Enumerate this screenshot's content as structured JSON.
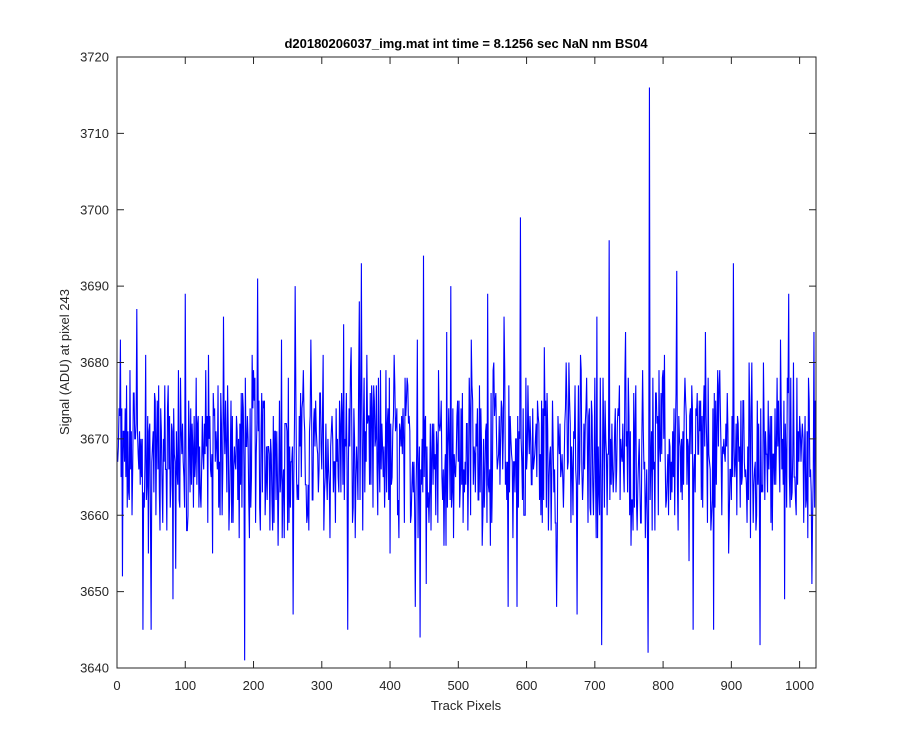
{
  "chart_data": {
    "type": "line",
    "title": "d20180206037_img.mat int time = 8.1256 sec  NaN nm BS04",
    "xlabel": "Track Pixels",
    "ylabel": "Signal (ADU) at pixel 243",
    "xlim": [
      0,
      1024
    ],
    "ylim": [
      3640,
      3720
    ],
    "xticks": [
      0,
      100,
      200,
      300,
      400,
      500,
      600,
      700,
      800,
      900,
      1000
    ],
    "yticks": [
      3640,
      3650,
      3660,
      3670,
      3680,
      3690,
      3700,
      3710,
      3720
    ],
    "grid": false,
    "series": [
      {
        "color": "#0000ff",
        "x_start": 1,
        "x_step": 1,
        "note_extremes": {
          "max": [
            780,
            3716
          ],
          "min": [
            187,
            3641
          ]
        },
        "sampled_points": [
          [
            1,
            3667
          ],
          [
            5,
            3683
          ],
          [
            8,
            3652
          ],
          [
            12,
            3674
          ],
          [
            18,
            3662
          ],
          [
            24,
            3676
          ],
          [
            29,
            3687
          ],
          [
            34,
            3664
          ],
          [
            38,
            3645
          ],
          [
            42,
            3681
          ],
          [
            46,
            3655
          ],
          [
            50,
            3645
          ],
          [
            56,
            3675
          ],
          [
            63,
            3658
          ],
          [
            70,
            3677
          ],
          [
            76,
            3666
          ],
          [
            82,
            3649
          ],
          [
            86,
            3653
          ],
          [
            90,
            3679
          ],
          [
            95,
            3668
          ],
          [
            100,
            3689
          ],
          [
            104,
            3660
          ],
          [
            110,
            3672
          ],
          [
            116,
            3678
          ],
          [
            122,
            3663
          ],
          [
            128,
            3672
          ],
          [
            134,
            3681
          ],
          [
            140,
            3655
          ],
          [
            146,
            3669
          ],
          [
            151,
            3660
          ],
          [
            156,
            3686
          ],
          [
            161,
            3663
          ],
          [
            167,
            3675
          ],
          [
            173,
            3667
          ],
          [
            179,
            3657
          ],
          [
            184,
            3676
          ],
          [
            187,
            3641
          ],
          [
            192,
            3670
          ],
          [
            198,
            3681
          ],
          [
            203,
            3659
          ],
          [
            206,
            3691
          ],
          [
            211,
            3671
          ],
          [
            217,
            3660
          ],
          [
            223,
            3668
          ],
          [
            229,
            3673
          ],
          [
            235,
            3665
          ],
          [
            241,
            3683
          ],
          [
            247,
            3672
          ],
          [
            252,
            3659
          ],
          [
            258,
            3647
          ],
          [
            261,
            3690
          ],
          [
            266,
            3662
          ],
          [
            272,
            3675
          ],
          [
            278,
            3659
          ],
          [
            284,
            3683
          ],
          [
            290,
            3669
          ],
          [
            296,
            3666
          ],
          [
            302,
            3681
          ],
          [
            308,
            3662
          ],
          [
            314,
            3671
          ],
          [
            320,
            3659
          ],
          [
            326,
            3675
          ],
          [
            332,
            3685
          ],
          [
            338,
            3645
          ],
          [
            343,
            3682
          ],
          [
            349,
            3657
          ],
          [
            355,
            3688
          ],
          [
            358,
            3693
          ],
          [
            364,
            3671
          ],
          [
            370,
            3664
          ],
          [
            376,
            3677
          ],
          [
            382,
            3660
          ],
          [
            388,
            3672
          ],
          [
            394,
            3679
          ],
          [
            400,
            3655
          ],
          [
            406,
            3681
          ],
          [
            412,
            3662
          ],
          [
            418,
            3668
          ],
          [
            424,
            3675
          ],
          [
            431,
            3660
          ],
          [
            437,
            3648
          ],
          [
            440,
            3683
          ],
          [
            444,
            3644
          ],
          [
            449,
            3694
          ],
          [
            453,
            3651
          ],
          [
            459,
            3672
          ],
          [
            465,
            3666
          ],
          [
            471,
            3679
          ],
          [
            477,
            3662
          ],
          [
            483,
            3684
          ],
          [
            489,
            3690
          ],
          [
            495,
            3666
          ],
          [
            501,
            3675
          ],
          [
            507,
            3659
          ],
          [
            513,
            3672
          ],
          [
            519,
            3683
          ],
          [
            525,
            3663
          ],
          [
            531,
            3677
          ],
          [
            537,
            3670
          ],
          [
            543,
            3689
          ],
          [
            549,
            3659
          ],
          [
            555,
            3676
          ],
          [
            561,
            3664
          ],
          [
            567,
            3686
          ],
          [
            573,
            3648
          ],
          [
            581,
            3667
          ],
          [
            586,
            3648
          ],
          [
            591,
            3699
          ],
          [
            596,
            3660
          ],
          [
            602,
            3677
          ],
          [
            608,
            3664
          ],
          [
            614,
            3672
          ],
          [
            620,
            3668
          ],
          [
            626,
            3682
          ],
          [
            632,
            3658
          ],
          [
            638,
            3675
          ],
          [
            644,
            3648
          ],
          [
            650,
            3665
          ],
          [
            656,
            3672
          ],
          [
            662,
            3680
          ],
          [
            668,
            3660
          ],
          [
            674,
            3647
          ],
          [
            679,
            3681
          ],
          [
            685,
            3666
          ],
          [
            691,
            3673
          ],
          [
            697,
            3664
          ],
          [
            703,
            3686
          ],
          [
            710,
            3643
          ],
          [
            715,
            3675
          ],
          [
            721,
            3696
          ],
          [
            727,
            3663
          ],
          [
            733,
            3672
          ],
          [
            739,
            3668
          ],
          [
            745,
            3684
          ],
          [
            751,
            3660
          ],
          [
            757,
            3676
          ],
          [
            763,
            3664
          ],
          [
            769,
            3671
          ],
          [
            775,
            3662
          ],
          [
            778,
            3642
          ],
          [
            780,
            3716
          ],
          [
            784,
            3658
          ],
          [
            790,
            3676
          ],
          [
            796,
            3667
          ],
          [
            802,
            3681
          ],
          [
            808,
            3660
          ],
          [
            814,
            3671
          ],
          [
            820,
            3692
          ],
          [
            826,
            3663
          ],
          [
            832,
            3678
          ],
          [
            838,
            3654
          ],
          [
            844,
            3645
          ],
          [
            850,
            3676
          ],
          [
            856,
            3662
          ],
          [
            862,
            3684
          ],
          [
            868,
            3667
          ],
          [
            874,
            3645
          ],
          [
            880,
            3679
          ],
          [
            886,
            3660
          ],
          [
            892,
            3672
          ],
          [
            898,
            3666
          ],
          [
            903,
            3693
          ],
          [
            908,
            3660
          ],
          [
            914,
            3675
          ],
          [
            920,
            3665
          ],
          [
            926,
            3680
          ],
          [
            932,
            3659
          ],
          [
            938,
            3675
          ],
          [
            942,
            3643
          ],
          [
            947,
            3680
          ],
          [
            953,
            3663
          ],
          [
            959,
            3673
          ],
          [
            965,
            3664
          ],
          [
            972,
            3683
          ],
          [
            978,
            3649
          ],
          [
            984,
            3689
          ],
          [
            990,
            3668
          ],
          [
            996,
            3678
          ],
          [
            1002,
            3667
          ],
          [
            1008,
            3673
          ],
          [
            1014,
            3675
          ],
          [
            1018,
            3651
          ],
          [
            1021,
            3684
          ],
          [
            1024,
            3670
          ]
        ]
      }
    ]
  }
}
